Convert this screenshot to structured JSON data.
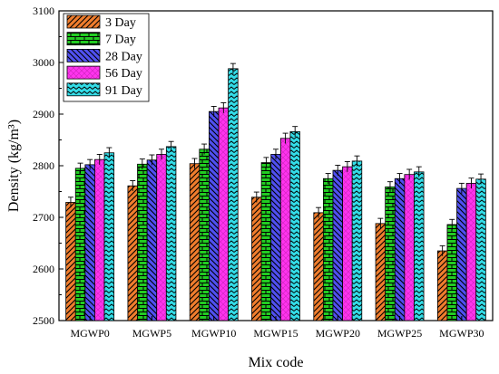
{
  "chart_data": {
    "type": "bar",
    "xlabel": "Mix code",
    "ylabel": "Density (kg/m³)",
    "ylim": [
      2500,
      3100
    ],
    "yticks": [
      2500,
      2600,
      2700,
      2800,
      2900,
      3000,
      3100
    ],
    "grid": false,
    "legend_position": "top-left",
    "categories": [
      "MGWP0",
      "MGWP5",
      "MGWP10",
      "MGWP15",
      "MGWP20",
      "MGWP25",
      "MGWP30"
    ],
    "error_bar": 10,
    "series": [
      {
        "name": "3 Day",
        "color": "#f07d2d",
        "pattern": "diagonal-lines",
        "values": [
          2729,
          2761,
          2804,
          2739,
          2709,
          2688,
          2635
        ]
      },
      {
        "name": "7 Day",
        "color": "#22cc22",
        "pattern": "bricks",
        "values": [
          2795,
          2803,
          2832,
          2806,
          2775,
          2759,
          2686
        ]
      },
      {
        "name": "28 Day",
        "color": "#5050f0",
        "pattern": "diagonal-lines",
        "values": [
          2802,
          2811,
          2905,
          2822,
          2791,
          2775,
          2756
        ]
      },
      {
        "name": "56 Day",
        "color": "#ff33ee",
        "pattern": "crosshatch",
        "values": [
          2812,
          2822,
          2912,
          2853,
          2798,
          2783,
          2766
        ]
      },
      {
        "name": "91 Day",
        "color": "#33dde8",
        "pattern": "zigzag",
        "values": [
          2825,
          2837,
          2988,
          2866,
          2809,
          2788,
          2774
        ]
      }
    ]
  }
}
